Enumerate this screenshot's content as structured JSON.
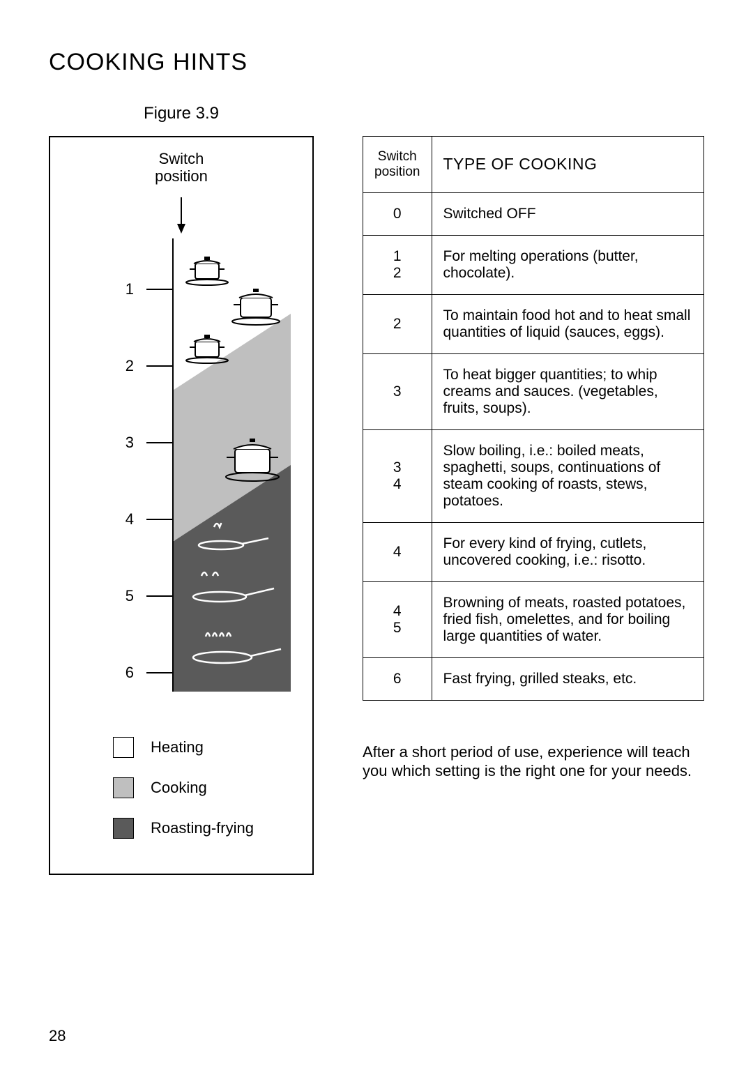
{
  "title": "COOKING HINTS",
  "figure_caption": "Figure 3.9",
  "diagram": {
    "switch_label_line1": "Switch",
    "switch_label_line2": "position",
    "ticks": [
      "1",
      "2",
      "3",
      "4",
      "5",
      "6"
    ],
    "colors": {
      "heating": "#ffffff",
      "cooking": "#bfbfbf",
      "roasting": "#5a5a5a"
    },
    "legend": [
      {
        "label": "Heating",
        "swatch": "white"
      },
      {
        "label": "Cooking",
        "swatch": "grey"
      },
      {
        "label": "Roasting-frying",
        "swatch": "dark"
      }
    ]
  },
  "table": {
    "header_pos_line1": "Switch",
    "header_pos_line2": "position",
    "header_type": "TYPE OF COOKING",
    "rows": [
      {
        "pos": "0",
        "desc": "Switched OFF"
      },
      {
        "pos": "1\n2",
        "desc": "For melting operations (butter, chocolate)."
      },
      {
        "pos": "2",
        "desc": "To maintain food hot and to heat small quantities of liquid (sauces, eggs).",
        "justify": true
      },
      {
        "pos": "3",
        "desc": "To heat bigger quantities; to whip creams and sauces. (vegetables, fruits, soups).",
        "justify": true
      },
      {
        "pos": "3\n4",
        "desc": "Slow boiling, i.e.: boiled meats, spaghetti, soups, continuations of steam cooking of roasts, stews, potatoes.",
        "justify": true
      },
      {
        "pos": "4",
        "desc": "For every kind of frying, cutlets, uncovered cooking, i.e.: risotto.",
        "justify": true
      },
      {
        "pos": "4\n5",
        "desc": "Browning of meats, roasted potatoes, fried fish, omelettes, and for boiling large quantities of water.",
        "justify": true
      },
      {
        "pos": "6",
        "desc": "Fast frying, grilled steaks, etc.",
        "justify": true
      }
    ]
  },
  "footnote": "After a short period of use, experience will teach you which setting is the right one for your needs.",
  "page_number": "28"
}
